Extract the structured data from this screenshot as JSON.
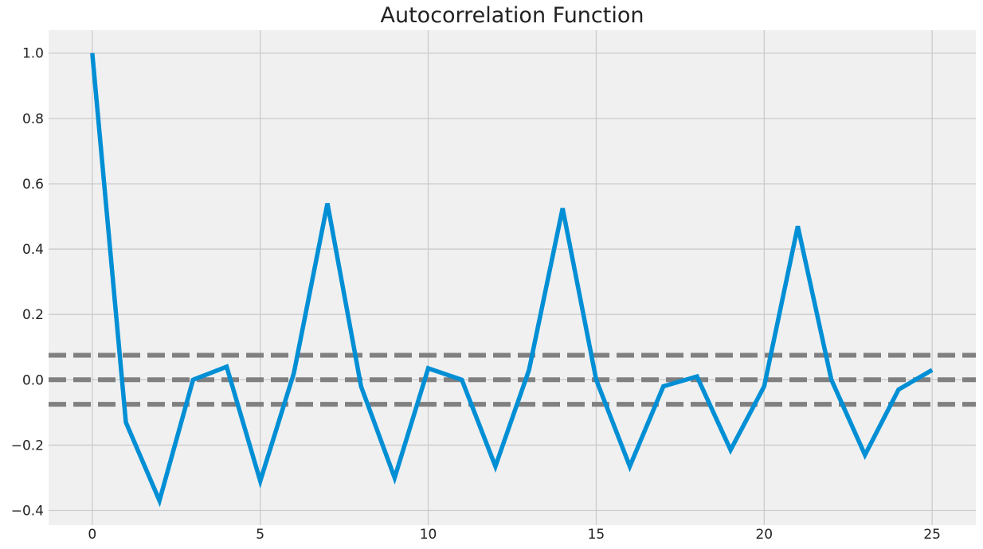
{
  "chart_data": {
    "type": "line",
    "title": "Autocorrelation Function",
    "xlabel": "",
    "ylabel": "",
    "xlim": [
      -1.3,
      26.3
    ],
    "ylim": [
      -0.445,
      1.07
    ],
    "x_ticks": [
      0,
      5,
      10,
      15,
      20,
      25
    ],
    "x_tick_labels": [
      "0",
      "5",
      "10",
      "15",
      "20",
      "25"
    ],
    "y_ticks": [
      -0.4,
      -0.2,
      0.0,
      0.2,
      0.4,
      0.6,
      0.8,
      1.0
    ],
    "y_tick_labels": [
      "−0.4",
      "−0.2",
      "0.0",
      "0.2",
      "0.4",
      "0.6",
      "0.8",
      "1.0"
    ],
    "grid": true,
    "background_color": "#f0f0f0",
    "grid_color": "#cbcbcb",
    "series": [
      {
        "color": "#008fd5",
        "x": [
          0,
          1,
          2,
          3,
          4,
          5,
          6,
          7,
          8,
          9,
          10,
          11,
          12,
          13,
          14,
          15,
          16,
          17,
          18,
          19,
          20,
          21,
          22,
          23,
          24,
          25
        ],
        "values": [
          1.0,
          -0.13,
          -0.37,
          0.0,
          0.04,
          -0.31,
          0.02,
          0.54,
          -0.02,
          -0.3,
          0.035,
          0.0,
          -0.265,
          0.03,
          0.525,
          0.0,
          -0.265,
          -0.02,
          0.01,
          -0.215,
          -0.02,
          0.47,
          0.0,
          -0.23,
          -0.03,
          0.03
        ]
      }
    ],
    "reference_lines": [
      {
        "y": 0.075,
        "style": "dashed",
        "color": "#808080"
      },
      {
        "y": 0.0,
        "style": "dashed",
        "color": "#808080"
      },
      {
        "y": -0.075,
        "style": "dashed",
        "color": "#808080"
      }
    ]
  }
}
